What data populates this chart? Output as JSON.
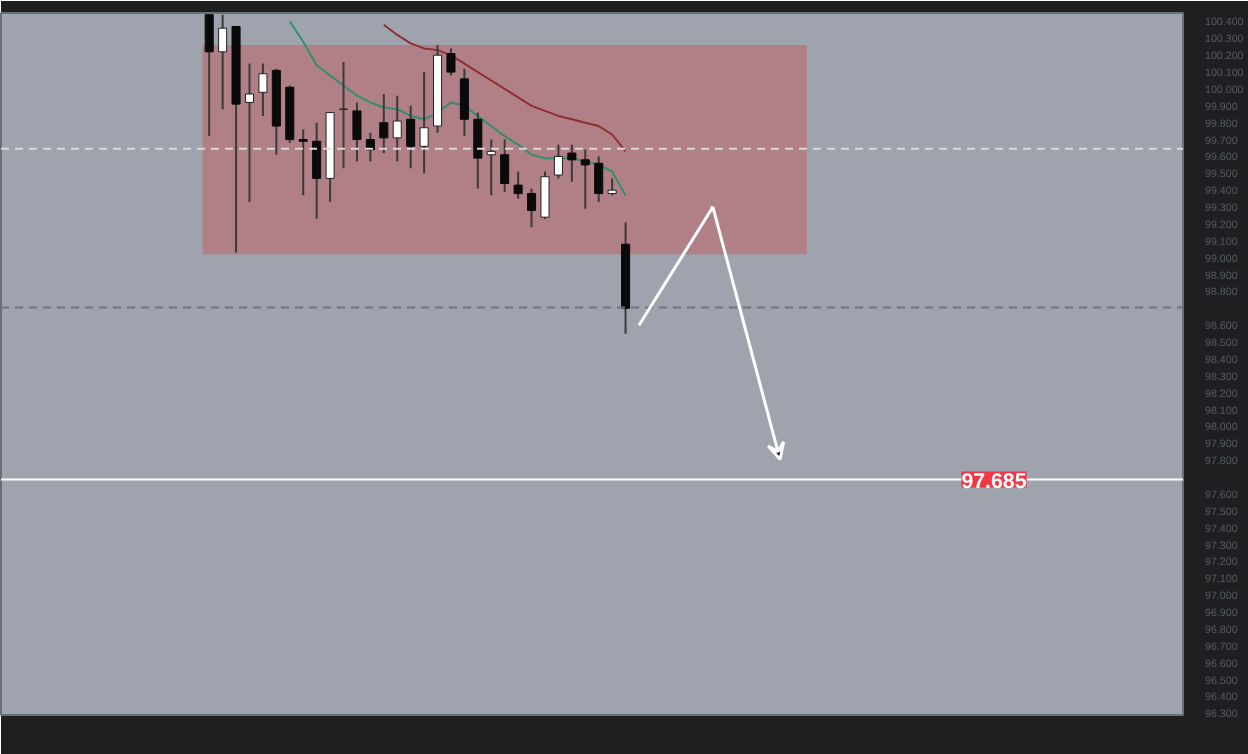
{
  "chart_data": {
    "type": "candlestick",
    "categories": [
      null,
      null,
      null,
      null,
      null,
      null,
      null,
      null,
      null,
      null,
      null,
      null,
      null,
      null,
      null,
      null,
      null,
      null,
      null,
      null,
      null,
      null,
      null,
      null,
      null,
      null,
      null,
      null,
      null,
      null,
      null,
      null,
      null,
      null,
      null,
      null,
      null,
      null,
      null,
      null,
      null,
      null,
      null,
      null,
      null,
      null,
      null,
      null,
      null,
      null,
      null,
      null,
      null,
      null,
      null,
      null,
      null,
      null,
      null,
      null,
      null,
      null,
      null,
      null,
      null,
      null,
      null,
      null,
      null,
      null,
      null,
      null,
      null,
      null,
      null,
      null,
      null,
      null,
      null,
      null,
      null,
      null,
      null,
      null,
      null,
      null,
      null,
      null
    ],
    "ohlc": [
      null,
      null,
      null,
      null,
      null,
      null,
      null,
      null,
      null,
      null,
      null,
      null,
      null,
      null,
      null,
      [
        100.44,
        100.44,
        99.72,
        100.22
      ],
      [
        100.22,
        100.44,
        99.88,
        100.36
      ],
      [
        100.37,
        100.37,
        99.03,
        99.91
      ],
      [
        99.92,
        100.15,
        99.33,
        99.97
      ],
      [
        99.98,
        100.15,
        99.84,
        100.09
      ],
      [
        100.11,
        100.12,
        99.61,
        99.78
      ],
      [
        100.01,
        100.02,
        99.68,
        99.7
      ],
      [
        99.7,
        99.76,
        99.37,
        99.69
      ],
      [
        99.69,
        99.8,
        99.23,
        99.47
      ],
      [
        99.47,
        99.86,
        99.33,
        99.86
      ],
      [
        99.88,
        100.16,
        99.53,
        99.88
      ],
      [
        99.87,
        99.92,
        99.57,
        99.7
      ],
      [
        99.7,
        99.74,
        99.57,
        99.64
      ],
      [
        99.8,
        99.97,
        99.62,
        99.71
      ],
      [
        99.71,
        99.96,
        99.57,
        99.81
      ],
      [
        99.82,
        99.9,
        99.53,
        99.66
      ],
      [
        99.66,
        100.1,
        99.5,
        99.77
      ],
      [
        99.78,
        100.26,
        99.74,
        100.2
      ],
      [
        100.21,
        100.24,
        100.08,
        100.1
      ],
      [
        100.06,
        100.12,
        99.72,
        99.82
      ],
      [
        99.82,
        99.86,
        99.41,
        99.59
      ],
      [
        99.61,
        99.7,
        99.37,
        99.63
      ],
      [
        99.61,
        99.7,
        99.39,
        99.44
      ],
      [
        99.43,
        99.51,
        99.35,
        99.38
      ],
      [
        99.38,
        99.41,
        99.18,
        99.28
      ],
      [
        99.24,
        99.51,
        99.23,
        99.48
      ],
      [
        99.49,
        99.67,
        99.47,
        99.6
      ],
      [
        99.62,
        99.67,
        99.45,
        99.58
      ],
      [
        99.58,
        99.64,
        99.29,
        99.55
      ],
      [
        99.56,
        99.6,
        99.33,
        99.38
      ],
      [
        99.38,
        99.47,
        99.37,
        99.4
      ],
      [
        99.08,
        99.21,
        98.55,
        98.7
      ],
      null,
      null,
      null,
      null,
      null,
      null,
      null,
      null,
      null,
      null,
      null,
      null,
      null,
      null,
      null,
      null,
      null,
      null,
      null,
      null,
      null,
      null,
      null,
      null,
      null,
      null,
      null,
      null,
      null,
      null,
      null,
      null,
      null,
      null,
      null,
      null,
      null,
      null,
      null,
      null,
      null
    ],
    "series": [
      {
        "type": "line",
        "color": "#2f8f6e",
        "values": [
          null,
          null,
          null,
          null,
          null,
          null,
          null,
          null,
          null,
          null,
          null,
          null,
          null,
          null,
          null,
          null,
          null,
          null,
          null,
          null,
          null,
          100.4,
          100.28,
          100.14,
          100.08,
          100.02,
          99.96,
          99.92,
          99.89,
          99.88,
          99.84,
          99.82,
          99.86,
          99.92,
          99.9,
          99.84,
          99.78,
          99.72,
          99.67,
          99.61,
          99.59,
          99.59,
          99.59,
          99.57,
          99.55,
          99.51,
          99.37,
          null,
          null,
          null,
          null,
          null,
          null,
          null,
          null,
          null,
          null,
          null,
          null,
          null,
          null,
          null,
          null,
          null,
          null,
          null,
          null,
          null,
          null,
          null,
          null,
          null,
          null,
          null,
          null,
          null,
          null,
          null,
          null,
          null,
          null,
          null,
          null,
          null,
          null,
          null,
          null,
          null
        ]
      },
      {
        "type": "line",
        "color": "#8e2f34",
        "values": [
          null,
          null,
          null,
          null,
          null,
          null,
          null,
          null,
          null,
          null,
          null,
          null,
          null,
          null,
          null,
          null,
          null,
          null,
          null,
          null,
          null,
          null,
          null,
          null,
          null,
          null,
          null,
          null,
          100.38,
          100.32,
          100.27,
          100.24,
          100.23,
          100.2,
          100.15,
          100.1,
          100.05,
          100.0,
          99.95,
          99.9,
          99.87,
          99.84,
          99.82,
          99.8,
          99.78,
          99.73,
          99.63,
          null,
          null,
          null,
          null,
          null,
          null,
          null,
          null,
          null,
          null,
          null,
          null,
          null,
          null,
          null,
          null,
          null,
          null,
          null,
          null,
          null,
          null,
          null,
          null,
          null,
          null,
          null,
          null,
          null,
          null,
          null,
          null,
          null,
          null,
          null,
          null,
          null,
          null,
          null,
          null,
          null
        ]
      }
    ],
    "ylim": [
      96.29,
      100.45
    ],
    "yticks": [
      {
        "value": 96.3,
        "label": "96.300"
      },
      {
        "value": 96.4,
        "label": "96.400"
      },
      {
        "value": 96.5,
        "label": "96.500"
      },
      {
        "value": 96.6,
        "label": "96.600"
      },
      {
        "value": 96.7,
        "label": "96.700"
      },
      {
        "value": 96.8,
        "label": "96.800"
      },
      {
        "value": 96.9,
        "label": "96.900"
      },
      {
        "value": 97.0,
        "label": "97.000"
      },
      {
        "value": 97.1,
        "label": "97.100"
      },
      {
        "value": 97.2,
        "label": "97.200"
      },
      {
        "value": 97.3,
        "label": "97.300"
      },
      {
        "value": 97.4,
        "label": "97.400"
      },
      {
        "value": 97.5,
        "label": "97.500"
      },
      {
        "value": 97.6,
        "label": "97.600"
      },
      {
        "value": 97.8,
        "label": "97.800"
      },
      {
        "value": 97.9,
        "label": "97.900"
      },
      {
        "value": 98.0,
        "label": "98.000"
      },
      {
        "value": 98.1,
        "label": "98.100"
      },
      {
        "value": 98.2,
        "label": "98.200"
      },
      {
        "value": 98.3,
        "label": "98.300"
      },
      {
        "value": 98.4,
        "label": "98.400"
      },
      {
        "value": 98.5,
        "label": "98.500"
      },
      {
        "value": 98.6,
        "label": "98.600"
      },
      {
        "value": 98.8,
        "label": "98.800"
      },
      {
        "value": 98.9,
        "label": "98.900"
      },
      {
        "value": 99.0,
        "label": "99.000"
      },
      {
        "value": 99.1,
        "label": "99.100"
      },
      {
        "value": 99.2,
        "label": "99.200"
      },
      {
        "value": 99.3,
        "label": "99.300"
      },
      {
        "value": 99.4,
        "label": "99.400"
      },
      {
        "value": 99.5,
        "label": "99.500"
      },
      {
        "value": 99.6,
        "label": "99.600"
      },
      {
        "value": 99.7,
        "label": "99.700"
      },
      {
        "value": 99.8,
        "label": "99.800"
      },
      {
        "value": 99.9,
        "label": "99.900"
      },
      {
        "value": 100.0,
        "label": "100.000"
      },
      {
        "value": 100.1,
        "label": "100.100"
      },
      {
        "value": 100.2,
        "label": "100.200"
      },
      {
        "value": 100.3,
        "label": "100.300"
      },
      {
        "value": 100.4,
        "label": "100.400"
      }
    ],
    "tick_labels": "y",
    "grid": false,
    "bands": [
      {
        "axis": "y",
        "from": 99.02,
        "to": 100.26,
        "color": "#b4797f"
      }
    ],
    "ref_lines": [
      {
        "axis": "y",
        "value": 99.645,
        "label": null,
        "color": "#d8d8d8",
        "line_style": "dashed"
      },
      {
        "axis": "y",
        "value": 98.705,
        "label": null,
        "color": "#6e737c",
        "line_style": "dashed"
      },
      {
        "axis": "y",
        "value": 97.685,
        "label": "97.685",
        "color": "#ffffff",
        "line_style": "solid"
      }
    ]
  }
}
